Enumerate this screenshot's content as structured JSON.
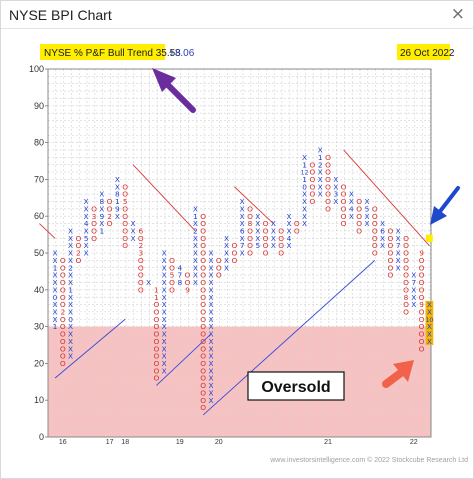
{
  "window": {
    "title": "NYSE BPI Chart",
    "close_glyph": "×"
  },
  "header": {
    "trend_label": "NYSE % P&F Bull Trend 35.58",
    "trend_change": "+3.06",
    "date": "26 Oct 2022"
  },
  "annotations": {
    "oversold": "Oversold"
  },
  "footer": {
    "credit": "www.investorsintelligence.com © 2022 Stockcube Research Ltd"
  },
  "colors": {
    "x_mark": "#1f3fd0",
    "o_mark": "#d8322e",
    "oversold_zone": "#f6b3b3",
    "highlight": "#ffee00",
    "purple_arrow": "#6b2d9e",
    "blue_arrow": "#1f49cc",
    "red_arrow": "#f2624a",
    "resistance_line": "#d83a3a",
    "support_line": "#3a4bd8"
  },
  "chart_data": {
    "type": "point-and-figure",
    "title": "NYSE BPI Chart",
    "box_size": 2,
    "ylim": [
      0,
      100
    ],
    "yticks": [
      0,
      10,
      20,
      30,
      40,
      50,
      60,
      70,
      80,
      90,
      100
    ],
    "oversold_level": 30,
    "x_tick_labels": [
      {
        "label": "16",
        "col": 1
      },
      {
        "label": "17",
        "col": 7
      },
      {
        "label": "18",
        "col": 9
      },
      {
        "label": "19",
        "col": 16
      },
      {
        "label": "20",
        "col": 21
      },
      {
        "label": "21",
        "col": 35
      },
      {
        "label": "22",
        "col": 46
      }
    ],
    "columns": [
      {
        "type": "X",
        "low": 30,
        "high": 50
      },
      {
        "type": "O",
        "low": 20,
        "high": 48
      },
      {
        "type": "X",
        "low": 22,
        "high": 56
      },
      {
        "type": "O",
        "low": 48,
        "high": 54
      },
      {
        "type": "X",
        "low": 50,
        "high": 64
      },
      {
        "type": "O",
        "low": 54,
        "high": 62
      },
      {
        "type": "X",
        "low": 56,
        "high": 66
      },
      {
        "type": "O",
        "low": 58,
        "high": 64
      },
      {
        "type": "X",
        "low": 60,
        "high": 70
      },
      {
        "type": "O",
        "low": 52,
        "high": 68
      },
      {
        "type": "X",
        "low": 54,
        "high": 58
      },
      {
        "type": "O",
        "low": 40,
        "high": 56
      },
      {
        "type": "X",
        "low": 42,
        "high": 42
      },
      {
        "type": "O",
        "low": 16,
        "high": 40
      },
      {
        "type": "X",
        "low": 18,
        "high": 50
      },
      {
        "type": "O",
        "low": 40,
        "high": 48
      },
      {
        "type": "X",
        "low": 42,
        "high": 46
      },
      {
        "type": "O",
        "low": 40,
        "high": 44
      },
      {
        "type": "X",
        "low": 42,
        "high": 62
      },
      {
        "type": "O",
        "low": 8,
        "high": 60
      },
      {
        "type": "X",
        "low": 10,
        "high": 50
      },
      {
        "type": "O",
        "low": 44,
        "high": 48
      },
      {
        "type": "X",
        "low": 46,
        "high": 54
      },
      {
        "type": "O",
        "low": 48,
        "high": 52
      },
      {
        "type": "X",
        "low": 50,
        "high": 64
      },
      {
        "type": "O",
        "low": 50,
        "high": 62
      },
      {
        "type": "X",
        "low": 52,
        "high": 60
      },
      {
        "type": "O",
        "low": 50,
        "high": 58
      },
      {
        "type": "X",
        "low": 52,
        "high": 58
      },
      {
        "type": "O",
        "low": 50,
        "high": 56
      },
      {
        "type": "X",
        "low": 52,
        "high": 60
      },
      {
        "type": "O",
        "low": 56,
        "high": 58
      },
      {
        "type": "X",
        "low": 58,
        "high": 76
      },
      {
        "type": "O",
        "low": 64,
        "high": 74
      },
      {
        "type": "X",
        "low": 66,
        "high": 78
      },
      {
        "type": "O",
        "low": 62,
        "high": 76
      },
      {
        "type": "X",
        "low": 64,
        "high": 70
      },
      {
        "type": "O",
        "low": 58,
        "high": 68
      },
      {
        "type": "X",
        "low": 60,
        "high": 66
      },
      {
        "type": "O",
        "low": 56,
        "high": 64
      },
      {
        "type": "X",
        "low": 58,
        "high": 64
      },
      {
        "type": "O",
        "low": 50,
        "high": 62
      },
      {
        "type": "X",
        "low": 52,
        "high": 58
      },
      {
        "type": "O",
        "low": 44,
        "high": 56
      },
      {
        "type": "X",
        "low": 46,
        "high": 56
      },
      {
        "type": "O",
        "low": 34,
        "high": 54
      },
      {
        "type": "X",
        "low": 36,
        "high": 44
      },
      {
        "type": "O",
        "low": 24,
        "high": 50
      },
      {
        "type": "X",
        "low": 26,
        "high": 36
      }
    ],
    "month_markers": [
      {
        "col": 0,
        "value": 30,
        "label": "1"
      },
      {
        "col": 0,
        "value": 38,
        "label": "0"
      },
      {
        "col": 0,
        "value": 46,
        "label": "1"
      },
      {
        "col": 1,
        "value": 34,
        "label": "2"
      },
      {
        "col": 2,
        "value": 32,
        "label": "0"
      },
      {
        "col": 2,
        "value": 40,
        "label": "1"
      },
      {
        "col": 2,
        "value": 46,
        "label": "2"
      },
      {
        "col": 3,
        "value": 50,
        "label": "2"
      },
      {
        "col": 4,
        "value": 58,
        "label": "4"
      },
      {
        "col": 4,
        "value": 54,
        "label": "5"
      },
      {
        "col": 5,
        "value": 60,
        "label": "3"
      },
      {
        "col": 6,
        "value": 64,
        "label": "8"
      },
      {
        "col": 6,
        "value": 60,
        "label": "9"
      },
      {
        "col": 6,
        "value": 56,
        "label": "1"
      },
      {
        "col": 7,
        "value": 60,
        "label": "2"
      },
      {
        "col": 8,
        "value": 64,
        "label": "1"
      },
      {
        "col": 8,
        "value": 62,
        "label": "9"
      },
      {
        "col": 8,
        "value": 66,
        "label": "8"
      },
      {
        "col": 9,
        "value": 64,
        "label": "5"
      },
      {
        "col": 11,
        "value": 56,
        "label": "6"
      },
      {
        "col": 11,
        "value": 52,
        "label": "2"
      },
      {
        "col": 11,
        "value": 50,
        "label": "3"
      },
      {
        "col": 13,
        "value": 40,
        "label": "1"
      },
      {
        "col": 13,
        "value": 38,
        "label": "1"
      },
      {
        "col": 16,
        "value": 46,
        "label": "4"
      },
      {
        "col": 16,
        "value": 44,
        "label": "7"
      },
      {
        "col": 15,
        "value": 44,
        "label": "5"
      },
      {
        "col": 16,
        "value": 42,
        "label": "8"
      },
      {
        "col": 17,
        "value": 40,
        "label": "9"
      },
      {
        "col": 17,
        "value": 36,
        "label": "1"
      },
      {
        "col": 18,
        "value": 60,
        "label": "1"
      },
      {
        "col": 18,
        "value": 56,
        "label": "2"
      },
      {
        "col": 24,
        "value": 56,
        "label": "6"
      },
      {
        "col": 24,
        "value": 52,
        "label": "7"
      },
      {
        "col": 25,
        "value": 58,
        "label": "8"
      },
      {
        "col": 26,
        "value": 52,
        "label": "5"
      },
      {
        "col": 28,
        "value": 60,
        "label": "3"
      },
      {
        "col": 30,
        "value": 54,
        "label": "4"
      },
      {
        "col": 32,
        "value": 74,
        "label": "1"
      },
      {
        "col": 32,
        "value": 72,
        "label": "12"
      },
      {
        "col": 32,
        "value": 70,
        "label": "1"
      },
      {
        "col": 32,
        "value": 68,
        "label": "0"
      },
      {
        "col": 34,
        "value": 76,
        "label": "1"
      },
      {
        "col": 34,
        "value": 74,
        "label": "2"
      },
      {
        "col": 36,
        "value": 66,
        "label": "3"
      },
      {
        "col": 38,
        "value": 62,
        "label": "4"
      },
      {
        "col": 40,
        "value": 62,
        "label": "5"
      },
      {
        "col": 42,
        "value": 56,
        "label": "6"
      },
      {
        "col": 44,
        "value": 52,
        "label": "7"
      },
      {
        "col": 45,
        "value": 38,
        "label": "8"
      },
      {
        "col": 46,
        "value": 42,
        "label": "7"
      },
      {
        "col": 47,
        "value": 50,
        "label": "9"
      },
      {
        "col": 47,
        "value": 36,
        "label": "9"
      },
      {
        "col": 48,
        "value": 32,
        "label": "10"
      }
    ],
    "highlighted_boxes": [
      {
        "col": 48,
        "values": [
          26,
          28,
          30,
          32,
          34,
          36
        ]
      }
    ],
    "trend_lines": [
      {
        "kind": "resistance",
        "from": {
          "col": 10,
          "value": 74
        },
        "to": {
          "col": 18,
          "value": 56
        }
      },
      {
        "kind": "resistance",
        "from": {
          "col": 23,
          "value": 68
        },
        "to": {
          "col": 28,
          "value": 58
        }
      },
      {
        "kind": "resistance",
        "from": {
          "col": 37,
          "value": 78
        },
        "to": {
          "col": 48,
          "value": 52
        }
      },
      {
        "kind": "resistance",
        "from": {
          "col": -2,
          "value": 58
        },
        "to": {
          "col": 0,
          "value": 54
        }
      },
      {
        "kind": "support",
        "from": {
          "col": 0,
          "value": 16
        },
        "to": {
          "col": 9,
          "value": 32
        }
      },
      {
        "kind": "support",
        "from": {
          "col": 13,
          "value": 14
        },
        "to": {
          "col": 20,
          "value": 28
        }
      },
      {
        "kind": "support",
        "from": {
          "col": 19,
          "value": 6
        },
        "to": {
          "col": 41,
          "value": 48
        }
      }
    ]
  }
}
